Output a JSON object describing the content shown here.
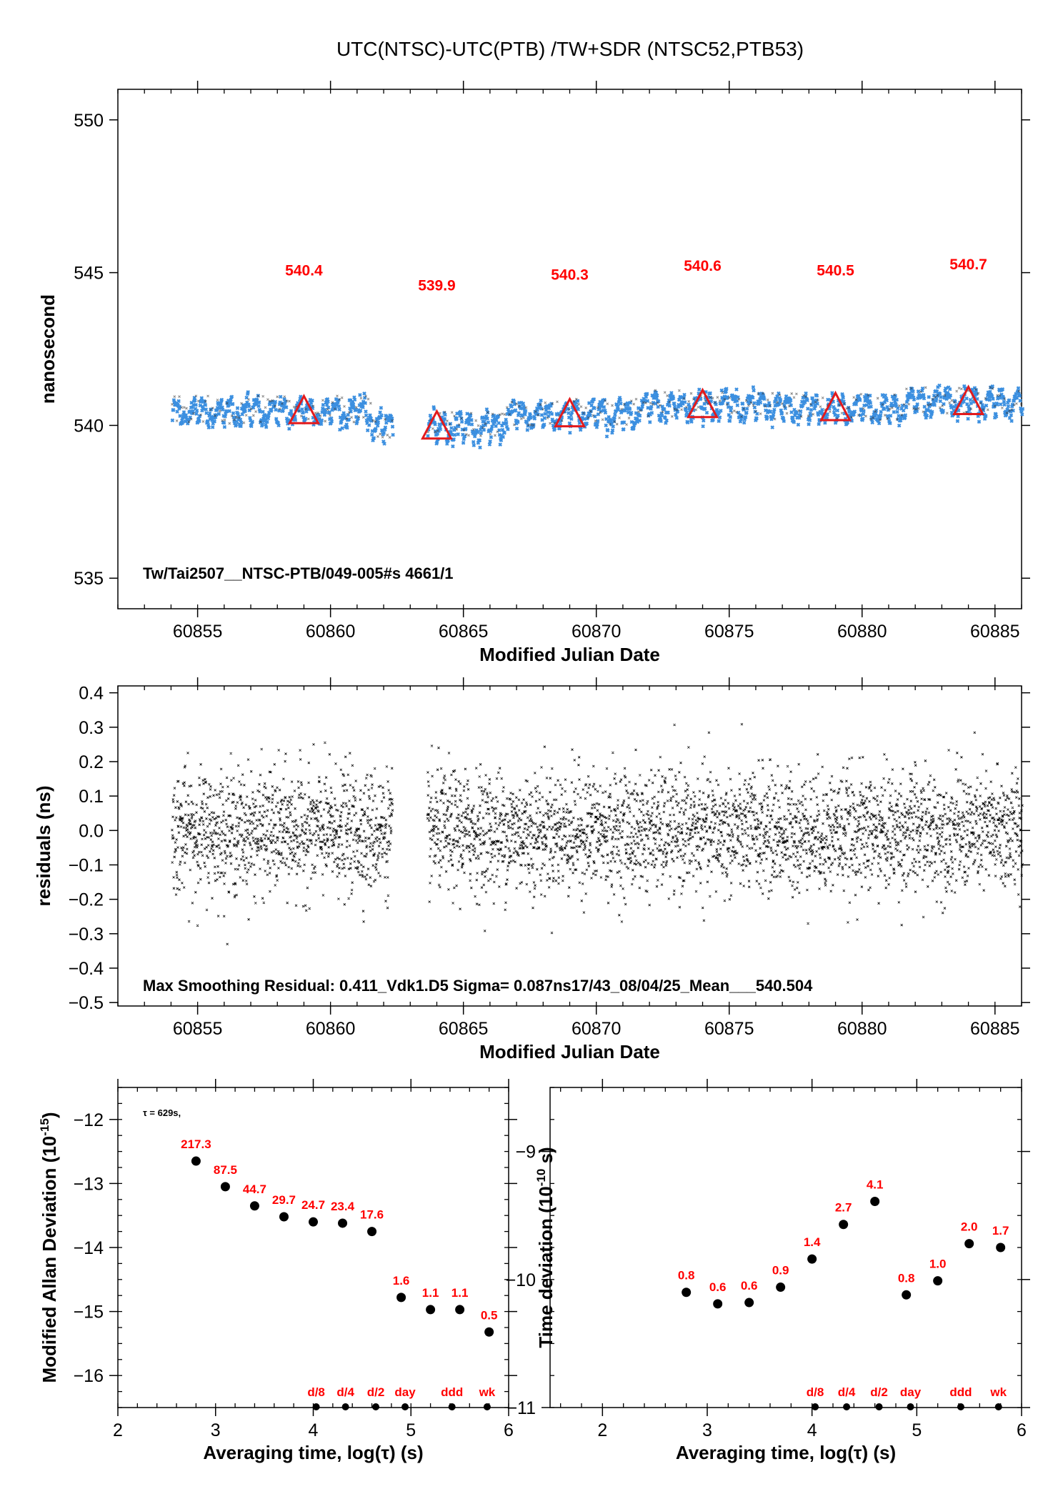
{
  "chart_data": [
    {
      "id": "timeseries",
      "type": "scatter",
      "title": "UTC(NTSC)-UTC(PTB)  /TW+SDR  (NTSC52,PTB53)",
      "xlabel": "Modified Julian Date",
      "ylabel": "nanosecond",
      "xlim": [
        60852,
        60886
      ],
      "ylim": [
        534,
        551
      ],
      "x_ticks": [
        60855,
        60860,
        60865,
        60870,
        60875,
        60880,
        60885
      ],
      "y_ticks": [
        535,
        540,
        545,
        550
      ],
      "data_range": [
        60854,
        60886
      ],
      "gap": [
        60862.3,
        60863.6
      ],
      "series_color": "#3b8fe0",
      "marker_color": "#e31a1c",
      "daily_means": [
        {
          "x": 60859,
          "y": 540.4,
          "label": "540.4"
        },
        {
          "x": 60864,
          "y": 539.9,
          "label": "539.9"
        },
        {
          "x": 60869,
          "y": 540.3,
          "label": "540.3"
        },
        {
          "x": 60874,
          "y": 540.6,
          "label": "540.6"
        },
        {
          "x": 60879,
          "y": 540.5,
          "label": "540.5"
        },
        {
          "x": 60884,
          "y": 540.7,
          "label": "540.7"
        }
      ],
      "annotation": "Tw/Tai2507__NTSC-PTB/049-005#s  4661/1"
    },
    {
      "id": "residuals",
      "type": "scatter",
      "xlabel": "Modified Julian Date",
      "ylabel": "residuals (ns)",
      "xlim": [
        60852,
        60886
      ],
      "ylim": [
        -0.51,
        0.42
      ],
      "x_ticks": [
        60855,
        60860,
        60865,
        60870,
        60875,
        60880,
        60885
      ],
      "y_ticks": [
        "0.4",
        "0.3",
        "0.2",
        "0.1",
        "0.0",
        "−0.1",
        "−0.2",
        "−0.3",
        "−0.4",
        "−0.5"
      ],
      "y_tick_values": [
        0.4,
        0.3,
        0.2,
        0.1,
        0.0,
        -0.1,
        -0.2,
        -0.3,
        -0.4,
        -0.5
      ],
      "sigma": 0.087,
      "annotation": "Max Smoothing Residual: 0.411_Vdk1.D5  Sigma= 0.087ns17/43_08/04/25_Mean___540.504"
    },
    {
      "id": "mdev",
      "type": "scatter",
      "xlabel": "Averaging time, log(τ) (s)",
      "ylabel": "Modified Allan Deviation (10",
      "ylabel_exp": "-15",
      "ylabel_end": ")",
      "xlim": [
        2,
        6
      ],
      "ylim": [
        -16.5,
        -11.5
      ],
      "x_ticks": [
        "2",
        "3",
        "4",
        "5",
        "6"
      ],
      "x_tick_values": [
        2,
        3,
        4,
        5,
        6
      ],
      "y_ticks": [
        "−12",
        "−13",
        "−14",
        "−15",
        "−16"
      ],
      "y_tick_values": [
        -12,
        -13,
        -14,
        -15,
        -16
      ],
      "tau_note": "τ = 629s,",
      "points": [
        {
          "x": 2.8,
          "y": -12.65,
          "label": "217.3"
        },
        {
          "x": 3.1,
          "y": -13.05,
          "label": "87.5"
        },
        {
          "x": 3.4,
          "y": -13.35,
          "label": "44.7"
        },
        {
          "x": 3.7,
          "y": -13.52,
          "label": "29.7"
        },
        {
          "x": 4.0,
          "y": -13.6,
          "label": "24.7"
        },
        {
          "x": 4.3,
          "y": -13.62,
          "label": "23.4"
        },
        {
          "x": 4.6,
          "y": -13.75,
          "label": "17.6"
        },
        {
          "x": 4.9,
          "y": -14.78,
          "label": "1.6"
        },
        {
          "x": 5.2,
          "y": -14.97,
          "label": "1.1"
        },
        {
          "x": 5.5,
          "y": -14.97,
          "label": "1.1"
        },
        {
          "x": 5.8,
          "y": -15.32,
          "label": "0.5"
        }
      ],
      "period_marks": [
        {
          "x": 4.03,
          "label": "d/8"
        },
        {
          "x": 4.33,
          "label": "d/4"
        },
        {
          "x": 4.64,
          "label": "d/2"
        },
        {
          "x": 4.94,
          "label": "day"
        },
        {
          "x": 5.42,
          "label": "ddd"
        },
        {
          "x": 5.78,
          "label": "wk"
        }
      ]
    },
    {
      "id": "tdev",
      "type": "scatter",
      "xlabel": "Averaging time, log(τ) (s)",
      "ylabel": "Time deviation (10",
      "ylabel_exp": "-10",
      "ylabel_end": " s)",
      "xlim": [
        1.5,
        6
      ],
      "ylim": [
        -11,
        -8.5
      ],
      "x_ticks": [
        "2",
        "3",
        "4",
        "5",
        "6"
      ],
      "x_tick_values": [
        2,
        3,
        4,
        5,
        6
      ],
      "y_ticks": [
        "−9",
        "−10",
        "−11"
      ],
      "y_tick_values": [
        -9,
        -10,
        -11
      ],
      "points": [
        {
          "x": 2.8,
          "y": -10.1,
          "label": "0.8"
        },
        {
          "x": 3.1,
          "y": -10.19,
          "label": "0.6"
        },
        {
          "x": 3.4,
          "y": -10.18,
          "label": "0.6"
        },
        {
          "x": 3.7,
          "y": -10.06,
          "label": "0.9"
        },
        {
          "x": 4.0,
          "y": -9.84,
          "label": "1.4"
        },
        {
          "x": 4.3,
          "y": -9.57,
          "label": "2.7"
        },
        {
          "x": 4.6,
          "y": -9.39,
          "label": "4.1"
        },
        {
          "x": 4.9,
          "y": -10.12,
          "label": "0.8"
        },
        {
          "x": 5.2,
          "y": -10.01,
          "label": "1.0"
        },
        {
          "x": 5.5,
          "y": -9.72,
          "label": "2.0"
        },
        {
          "x": 5.8,
          "y": -9.75,
          "label": "1.7"
        }
      ],
      "period_marks": [
        {
          "x": 4.03,
          "label": "d/8"
        },
        {
          "x": 4.33,
          "label": "d/4"
        },
        {
          "x": 4.64,
          "label": "d/2"
        },
        {
          "x": 4.94,
          "label": "day"
        },
        {
          "x": 5.42,
          "label": "ddd"
        },
        {
          "x": 5.78,
          "label": "wk"
        }
      ]
    }
  ]
}
